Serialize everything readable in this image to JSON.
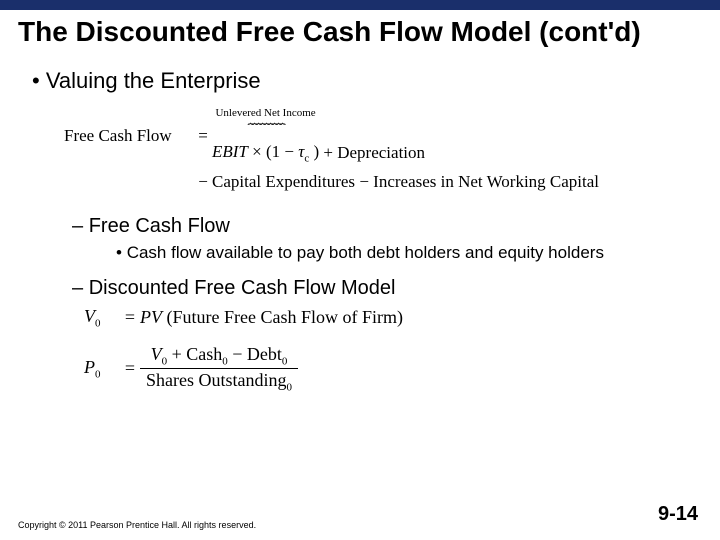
{
  "colors": {
    "topbar": "#1a2f6b",
    "text": "#000000",
    "background": "#ffffff"
  },
  "title": "The Discounted Free Cash Flow Model (cont'd)",
  "bullet1": "Valuing the Enterprise",
  "equation1": {
    "lhs": "Free Cash Flow",
    "overbrace_label": "Unlevered Net Income",
    "overbrace_glyphs": "⏞⏞⏞⏞⏞⏞⏞⏞⏞",
    "rhs_ebit": "EBIT",
    "rhs_times": " × (1 − ",
    "rhs_tau": "τ",
    "rhs_tausub": "c",
    "rhs_close": " )",
    "plus_dep": " + Depreciation",
    "line2_minus": "−",
    "line2_capex": " Capital Expenditures ",
    "line2_minus2": "−",
    "line2_nwc": " Increases in Net Working Capital"
  },
  "bullet2a": "Free Cash Flow",
  "bullet3a": "Cash flow available to pay both debt holders and equity holders",
  "bullet2b": "Discounted Free Cash Flow Model",
  "equation2": {
    "v0_lhs": "V",
    "v0_sub": "0",
    "v0_eq": "=",
    "v0_rhs_pv": "PV",
    "v0_rhs_rest": " (Future Free Cash Flow of Firm)",
    "p0_lhs": "P",
    "p0_sub": "0",
    "p0_eq": "=",
    "p0_num_v": "V",
    "p0_num_v_sub": "0",
    "p0_num_plus": " + Cash",
    "p0_num_cash_sub": "0",
    "p0_num_minus": " − Debt",
    "p0_num_debt_sub": "0",
    "p0_den": "Shares Outstanding",
    "p0_den_sub": "0"
  },
  "footer": "Copyright © 2011 Pearson Prentice Hall. All rights reserved.",
  "slidenum": "9-14",
  "fonts": {
    "heading_size_pt": 28,
    "body_size_pt": 22,
    "sub_size_pt": 20,
    "subsub_size_pt": 17,
    "eq_size_pt": 17,
    "footer_size_pt": 9
  }
}
